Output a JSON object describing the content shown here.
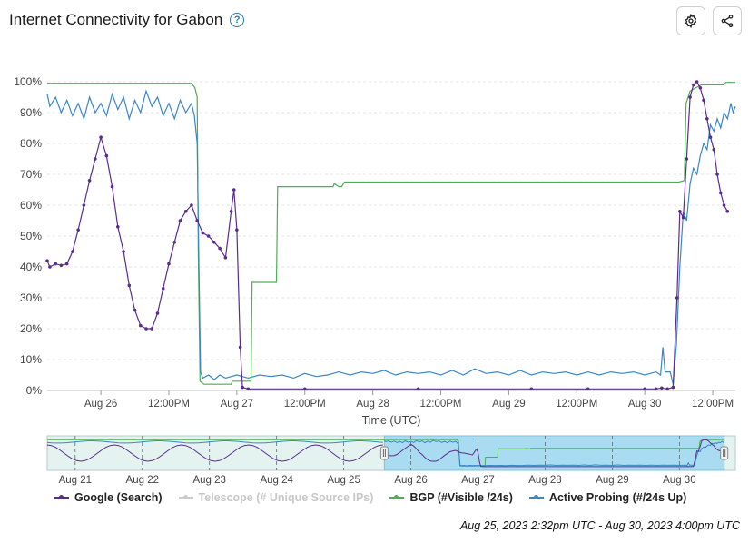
{
  "header": {
    "title": "Internet Connectivity for Gabon",
    "help_icon": "question-circle-icon",
    "settings_icon": "gear-icon",
    "share_icon": "share-icon"
  },
  "range_caption": "Aug 25, 2023 2:32pm UTC - Aug 30, 2023 4:00pm UTC",
  "legend": [
    {
      "label": "Google (Search)",
      "color": "#5b2c8f",
      "enabled": true
    },
    {
      "label": "Telescope (# Unique Source IPs)",
      "color": "#cccccc",
      "enabled": false
    },
    {
      "label": "BGP (#Visible /24s)",
      "color": "#4caf50",
      "enabled": true
    },
    {
      "label": "Active Probing (#/24s Up)",
      "color": "#3a86c8",
      "enabled": true
    }
  ],
  "chart_data": [
    {
      "type": "line",
      "xlabel": "Time (UTC)",
      "ylabel": "",
      "y_tick_labels": [
        "0%",
        "10%",
        "20%",
        "30%",
        "40%",
        "50%",
        "60%",
        "70%",
        "80%",
        "90%",
        "100%"
      ],
      "x_tick_labels": [
        "Aug 26",
        "12:00PM",
        "Aug 27",
        "12:00PM",
        "Aug 28",
        "12:00PM",
        "Aug 29",
        "12:00PM",
        "Aug 30",
        "12:00PM"
      ],
      "x_tick_hours": [
        24,
        36,
        48,
        60,
        72,
        84,
        96,
        108,
        120,
        132
      ],
      "xlim_hours": [
        14.53,
        136
      ],
      "ylim": [
        0,
        100
      ],
      "x_unit": "hours since Aug 25 00:00 UTC",
      "grid": true,
      "series": [
        {
          "name": "BGP (#Visible /24s)",
          "color": "#4caf50",
          "points": [
            [
              14.53,
              99.5
            ],
            [
              40,
              99.5
            ],
            [
              40.6,
              98
            ],
            [
              41,
              95
            ],
            [
              41.2,
              45
            ],
            [
              41.5,
              3
            ],
            [
              42.2,
              2
            ],
            [
              47,
              2
            ],
            [
              47.2,
              3
            ],
            [
              48,
              3
            ],
            [
              50.5,
              3
            ],
            [
              50.7,
              35
            ],
            [
              55,
              35
            ],
            [
              55.2,
              66
            ],
            [
              65,
              66
            ],
            [
              65.2,
              67
            ],
            [
              66,
              66
            ],
            [
              66.5,
              66
            ],
            [
              67,
              67.5
            ],
            [
              100,
              67.5
            ],
            [
              122,
              67.5
            ],
            [
              126,
              67.5
            ],
            [
              127,
              68
            ],
            [
              127.3,
              93
            ],
            [
              128,
              97
            ],
            [
              130,
              99
            ],
            [
              134,
              99
            ],
            [
              134.3,
              99.8
            ],
            [
              136,
              99.8
            ]
          ]
        },
        {
          "name": "Active Probing (#/24s Up)",
          "color": "#3a86c8",
          "points": [
            [
              14.53,
              96
            ],
            [
              15,
              92
            ],
            [
              16,
              95
            ],
            [
              17,
              90
            ],
            [
              18,
              94
            ],
            [
              19,
              89
            ],
            [
              20,
              93
            ],
            [
              21,
              88
            ],
            [
              22,
              95
            ],
            [
              23,
              90
            ],
            [
              24,
              93
            ],
            [
              25,
              89
            ],
            [
              26,
              96
            ],
            [
              27,
              91
            ],
            [
              28,
              95
            ],
            [
              29,
              88
            ],
            [
              30,
              94
            ],
            [
              31,
              90
            ],
            [
              32,
              97
            ],
            [
              33,
              92
            ],
            [
              34,
              95
            ],
            [
              35,
              89
            ],
            [
              36,
              93
            ],
            [
              37,
              88
            ],
            [
              38,
              94
            ],
            [
              39,
              90
            ],
            [
              40,
              93
            ],
            [
              40.5,
              89
            ],
            [
              41,
              80
            ],
            [
              41.3,
              40
            ],
            [
              41.6,
              6
            ],
            [
              42,
              4
            ],
            [
              43,
              5
            ],
            [
              44,
              3.5
            ],
            [
              45,
              5
            ],
            [
              46,
              4
            ],
            [
              48,
              5
            ],
            [
              50,
              4
            ],
            [
              52,
              5
            ],
            [
              54,
              4.5
            ],
            [
              56,
              5
            ],
            [
              58,
              4
            ],
            [
              60,
              5.5
            ],
            [
              62,
              4.5
            ],
            [
              64,
              5
            ],
            [
              66,
              6
            ],
            [
              68,
              5
            ],
            [
              70,
              6
            ],
            [
              72,
              5.5
            ],
            [
              74,
              6.5
            ],
            [
              76,
              5
            ],
            [
              78,
              6
            ],
            [
              80,
              5.5
            ],
            [
              82,
              6
            ],
            [
              84,
              5
            ],
            [
              86,
              6.5
            ],
            [
              88,
              5
            ],
            [
              90,
              7
            ],
            [
              92,
              5.5
            ],
            [
              94,
              6
            ],
            [
              96,
              5
            ],
            [
              98,
              6.5
            ],
            [
              100,
              5
            ],
            [
              102,
              6
            ],
            [
              104,
              5.5
            ],
            [
              106,
              6
            ],
            [
              108,
              5
            ],
            [
              110,
              6
            ],
            [
              112,
              5
            ],
            [
              114,
              6
            ],
            [
              116,
              5.5
            ],
            [
              118,
              6
            ],
            [
              120,
              5
            ],
            [
              122,
              6
            ],
            [
              122.8,
              5
            ],
            [
              123.2,
              14
            ],
            [
              123.6,
              6
            ],
            [
              124.5,
              6
            ],
            [
              125,
              2
            ],
            [
              125.6,
              15
            ],
            [
              126.2,
              40
            ],
            [
              126.8,
              58
            ],
            [
              127.4,
              55
            ],
            [
              128,
              67
            ],
            [
              128.6,
              72
            ],
            [
              129.2,
              70
            ],
            [
              129.8,
              76
            ],
            [
              130.4,
              80
            ],
            [
              131,
              78
            ],
            [
              131.6,
              86
            ],
            [
              132.2,
              84
            ],
            [
              132.8,
              88
            ],
            [
              133.4,
              85
            ],
            [
              134,
              90
            ],
            [
              134.6,
              88
            ],
            [
              135.2,
              93
            ],
            [
              135.6,
              90
            ],
            [
              136,
              92
            ]
          ]
        },
        {
          "name": "Google (Search)",
          "color": "#5b2c8f",
          "points": [
            [
              14.53,
              42
            ],
            [
              15,
              40
            ],
            [
              16,
              41
            ],
            [
              17,
              40.5
            ],
            [
              18,
              41
            ],
            [
              19,
              45
            ],
            [
              20,
              52
            ],
            [
              21,
              60
            ],
            [
              22,
              68
            ],
            [
              23,
              75
            ],
            [
              24,
              82
            ],
            [
              25,
              76
            ],
            [
              26,
              66
            ],
            [
              27,
              53
            ],
            [
              28,
              45
            ],
            [
              29,
              34
            ],
            [
              30,
              26
            ],
            [
              31,
              21
            ],
            [
              32,
              20
            ],
            [
              33,
              20
            ],
            [
              34,
              25
            ],
            [
              35,
              33
            ],
            [
              36,
              41
            ],
            [
              37,
              48
            ],
            [
              38,
              55
            ],
            [
              39,
              58
            ],
            [
              40,
              60
            ],
            [
              41,
              55
            ],
            [
              42,
              51
            ],
            [
              43,
              50
            ],
            [
              44,
              48
            ],
            [
              45,
              46
            ],
            [
              46,
              43
            ],
            [
              47,
              58
            ],
            [
              47.5,
              65
            ],
            [
              48,
              52
            ],
            [
              48.6,
              14
            ],
            [
              49,
              1
            ],
            [
              50,
              0.5
            ],
            [
              60,
              0.5
            ],
            [
              80,
              0.5
            ],
            [
              100,
              0.5
            ],
            [
              110,
              0.5
            ],
            [
              120,
              0.5
            ],
            [
              122,
              0.5
            ],
            [
              123,
              0.8
            ],
            [
              124,
              0.5
            ],
            [
              125,
              1
            ],
            [
              125.7,
              30
            ],
            [
              126.2,
              58
            ],
            [
              126.8,
              56
            ],
            [
              127.4,
              75
            ],
            [
              128,
              95
            ],
            [
              128.6,
              99
            ],
            [
              129.2,
              100
            ],
            [
              129.8,
              98
            ],
            [
              130.4,
              94
            ],
            [
              131,
              88
            ],
            [
              131.6,
              82
            ],
            [
              132.2,
              78
            ],
            [
              132.8,
              70
            ],
            [
              133.4,
              64
            ],
            [
              134,
              60
            ],
            [
              134.6,
              58
            ]
          ]
        }
      ]
    },
    {
      "type": "line",
      "note": "navigator overview",
      "x_tick_labels": [
        "Aug 21",
        "Aug 22",
        "Aug 23",
        "Aug 24",
        "Aug 25",
        "Aug 26",
        "Aug 27",
        "Aug 28",
        "Aug 29",
        "Aug 30"
      ],
      "x_tick_hours": [
        -96,
        -72,
        -48,
        -24,
        0,
        24,
        48,
        72,
        96,
        120
      ],
      "xlim_hours": [
        -106,
        140
      ],
      "selected_range_hours": [
        14.53,
        136
      ]
    }
  ]
}
